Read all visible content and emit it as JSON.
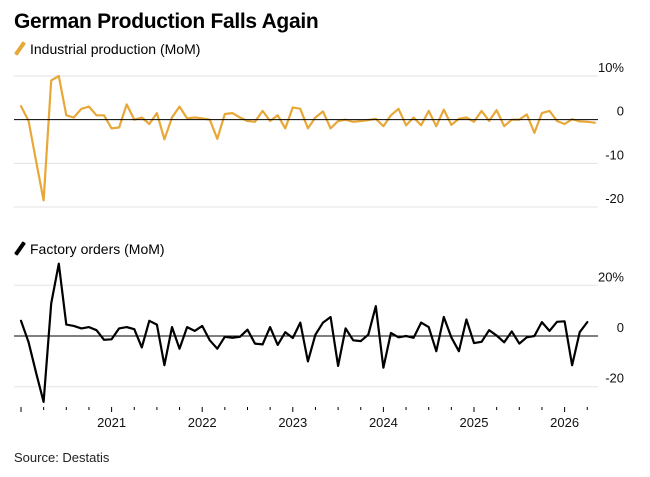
{
  "title": "German Production Falls Again",
  "source": "Source: Destatis",
  "colors": {
    "industrial": "#e8a838",
    "orders": "#000000",
    "grid": "#e3e3e3",
    "zero": "#000000"
  },
  "chart_data": [
    {
      "type": "line",
      "legend": "Industrial production (MoM)",
      "ylim": [
        -20,
        10
      ],
      "yticks": [
        10,
        0,
        -10,
        -20
      ],
      "ytick_labels": [
        "10%",
        "0",
        "-10",
        "-20"
      ],
      "x_start": "2020-01",
      "values": [
        3.1,
        -0.3,
        -9.5,
        -18.5,
        9.0,
        10.0,
        1.0,
        0.5,
        2.5,
        3.0,
        1.0,
        1.0,
        -2.0,
        -1.8,
        3.5,
        0.0,
        0.5,
        -1.0,
        1.5,
        -4.5,
        0.5,
        3.0,
        0.3,
        0.5,
        0.3,
        0.0,
        -4.4,
        1.3,
        1.5,
        0.5,
        -0.3,
        -0.5,
        2.0,
        -0.3,
        1.0,
        -2.0,
        2.8,
        2.5,
        -2.0,
        0.5,
        1.9,
        -2.0,
        -0.3,
        0.0,
        -0.5,
        -0.3,
        -0.1,
        0.2,
        -1.5,
        1.0,
        2.5,
        -1.3,
        0.5,
        -1.3,
        2.0,
        -1.5,
        2.3,
        -1.2,
        0.2,
        0.5,
        -0.5,
        2.0,
        -0.3,
        2.2,
        -1.5,
        0.0,
        0.0,
        1.2,
        -3.0,
        1.5,
        2.0,
        -0.3,
        -1.0,
        0.1,
        -0.4,
        -0.5,
        -0.7
      ]
    },
    {
      "type": "line",
      "legend": "Factory orders (MoM)",
      "ylim": [
        -28,
        28
      ],
      "yticks": [
        20,
        0,
        -20
      ],
      "ytick_labels": [
        "20%",
        "0",
        "-20"
      ],
      "x_start": "2020-01",
      "values": [
        6.0,
        -2.5,
        -14.5,
        -26.0,
        12.8,
        28.5,
        4.5,
        4.0,
        3.0,
        3.5,
        2.3,
        -1.5,
        -1.3,
        3.0,
        3.5,
        2.7,
        -4.5,
        6.0,
        4.5,
        -11.5,
        3.5,
        -5.0,
        3.5,
        2.0,
        4.0,
        -1.7,
        -5.0,
        -0.3,
        -0.7,
        -0.3,
        2.5,
        -3.0,
        -3.3,
        3.5,
        -3.5,
        1.5,
        -0.8,
        5.3,
        -10.0,
        0.5,
        5.3,
        7.5,
        -11.8,
        3.0,
        -1.7,
        -2.0,
        0.5,
        11.8,
        -12.5,
        1.2,
        -0.5,
        0.0,
        -0.7,
        5.3,
        3.5,
        -6.0,
        7.5,
        -0.5,
        -6.0,
        6.5,
        -2.8,
        -2.3,
        2.3,
        0.2,
        -2.5,
        1.8,
        -3.0,
        -0.5,
        0.0,
        5.5,
        2.0,
        5.6,
        5.8,
        -11.5,
        1.5,
        5.5
      ]
    }
  ],
  "x_axis": {
    "type": "time",
    "labels": [
      "2021",
      "2022",
      "2023",
      "2024",
      "2025",
      "2026"
    ],
    "positions": [
      "2021-01",
      "2022-01",
      "2023-01",
      "2024-01",
      "2025-01",
      "2026-01"
    ],
    "range": [
      "2020-01",
      "2026-04"
    ]
  }
}
